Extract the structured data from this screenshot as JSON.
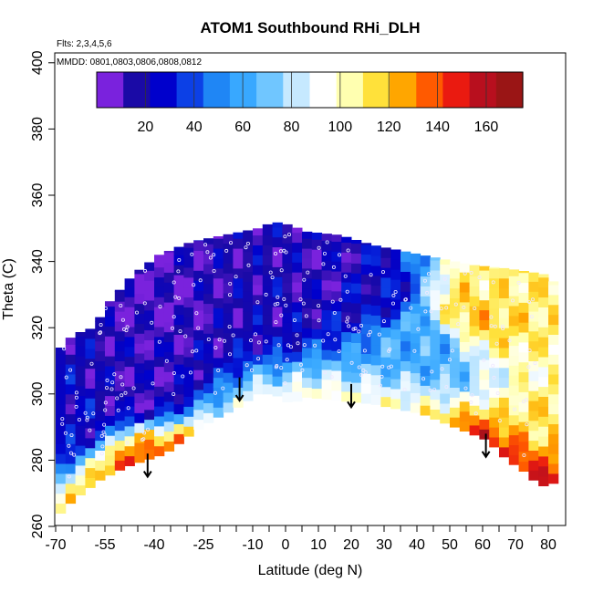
{
  "chart_data": {
    "type": "heatmap",
    "title": "ATOM1 Southbound RHi_DLH",
    "annotation_flights": "Flts: 2,3,4,5,6",
    "annotation_dates": "MMDD: 0801,0803,0806,0808,0812",
    "xlabel": "Latitude (deg N)",
    "ylabel": "Theta (C)",
    "xlim": [
      -72,
      82
    ],
    "ylim": [
      260,
      405
    ],
    "x_ticks": [
      -70,
      -55,
      -40,
      -25,
      -10,
      0,
      10,
      20,
      30,
      40,
      50,
      60,
      70,
      80
    ],
    "x_tick_labels": [
      "-70",
      "-55",
      "-40",
      "-25",
      "-10",
      "0",
      "10",
      "20",
      "30",
      "40",
      "50",
      "60",
      "70",
      "80"
    ],
    "x_minor_ticks": [
      -65,
      -60,
      -50,
      -45,
      -35,
      -30,
      -20,
      -15,
      -5,
      5,
      15,
      25,
      35,
      45,
      55,
      65,
      75
    ],
    "y_ticks": [
      260,
      280,
      300,
      320,
      340,
      360,
      380,
      400
    ],
    "y_tick_labels": [
      "260",
      "280",
      "300",
      "320",
      "340",
      "360",
      "380",
      "400"
    ],
    "colorbar": {
      "range": [
        0,
        175
      ],
      "ticks": [
        20,
        40,
        60,
        80,
        100,
        120,
        140,
        160
      ],
      "tick_labels": [
        "20",
        "40",
        "60",
        "80",
        "100",
        "120",
        "140",
        "160"
      ],
      "colors": [
        "#7a22dd",
        "#1a0aa6",
        "#0000cc",
        "#0c40e6",
        "#1f86f5",
        "#38a8ff",
        "#70c6ff",
        "#c6e9ff",
        "#ffffff",
        "#ffffb0",
        "#ffe13a",
        "#ffa600",
        "#ff5a00",
        "#ea1a10",
        "#b80f1e",
        "#9a1515"
      ]
    },
    "terrain_boundary": [
      [
        -70,
        264
      ],
      [
        -66,
        268
      ],
      [
        -58,
        274
      ],
      [
        -50,
        278
      ],
      [
        -44,
        280
      ],
      [
        -38,
        282
      ],
      [
        -30,
        288
      ],
      [
        -24,
        292
      ],
      [
        -16,
        296
      ],
      [
        -10,
        300
      ],
      [
        -5,
        300
      ],
      [
        0,
        297
      ],
      [
        5,
        299
      ],
      [
        15,
        298
      ],
      [
        25,
        297
      ],
      [
        40,
        294
      ],
      [
        50,
        290
      ],
      [
        60,
        286
      ],
      [
        66,
        280
      ],
      [
        72,
        276
      ],
      [
        76,
        272
      ],
      [
        80,
        273
      ]
    ],
    "upper_boundary": [
      [
        -70,
        314
      ],
      [
        -66,
        318
      ],
      [
        -60,
        320
      ],
      [
        -55,
        328
      ],
      [
        -48,
        336
      ],
      [
        -40,
        342
      ],
      [
        -30,
        346
      ],
      [
        -20,
        348
      ],
      [
        -10,
        350
      ],
      [
        -5,
        352
      ],
      [
        0,
        351
      ],
      [
        5,
        349
      ],
      [
        15,
        348
      ],
      [
        25,
        345
      ],
      [
        35,
        343
      ],
      [
        45,
        341
      ],
      [
        55,
        339
      ],
      [
        65,
        338
      ],
      [
        72,
        337
      ],
      [
        78,
        336
      ],
      [
        80,
        334
      ],
      [
        80,
        310
      ],
      [
        81,
        273
      ]
    ],
    "arrows_latitudes": [
      -42,
      -14,
      20,
      61
    ],
    "arrows_theta": [
      [
        282,
        275
      ],
      [
        305,
        298
      ],
      [
        303,
        296
      ],
      [
        288,
        281
      ]
    ],
    "rhi_field_description_values": [
      {
        "lat": -62,
        "theta": 290,
        "rhi": 20
      },
      {
        "lat": -45,
        "theta": 300,
        "rhi": 10
      },
      {
        "lat": -35,
        "theta": 330,
        "rhi": 5
      },
      {
        "lat": -20,
        "theta": 335,
        "rhi": 10
      },
      {
        "lat": -5,
        "theta": 330,
        "rhi": 15
      },
      {
        "lat": 10,
        "theta": 335,
        "rhi": 10
      },
      {
        "lat": 25,
        "theta": 330,
        "rhi": 20
      },
      {
        "lat": 40,
        "theta": 315,
        "rhi": 60
      },
      {
        "lat": 60,
        "theta": 325,
        "rhi": 120
      },
      {
        "lat": 65,
        "theta": 330,
        "rhi": 110
      },
      {
        "lat": -45,
        "theta": 282,
        "rhi": 95
      },
      {
        "lat": 20,
        "theta": 300,
        "rhi": 55
      },
      {
        "lat": 78,
        "theta": 285,
        "rhi": 115
      }
    ]
  }
}
